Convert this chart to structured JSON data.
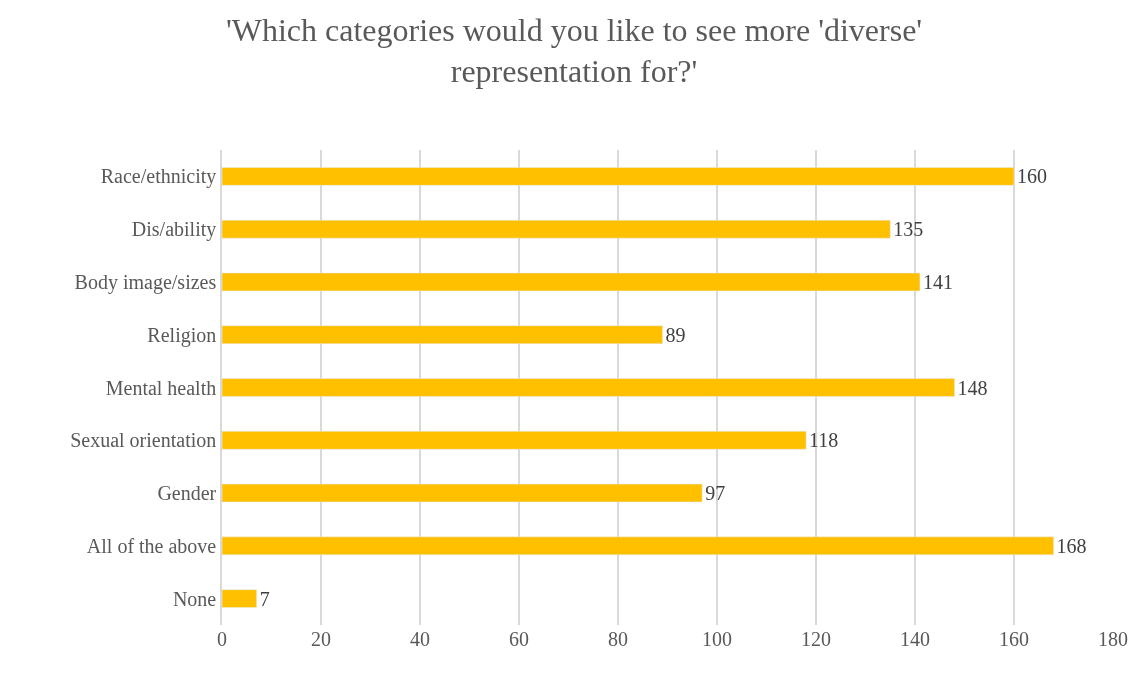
{
  "chart_data": {
    "type": "bar",
    "orientation": "horizontal",
    "title": "'Which categories would you like to see more 'diverse' representation for?'",
    "categories": [
      "Race/ethnicity",
      "Dis/ability",
      "Body image/sizes",
      "Religion",
      "Mental health",
      "Sexual orientation",
      "Gender",
      "All of the above",
      "None"
    ],
    "values": [
      160,
      135,
      141,
      89,
      148,
      118,
      97,
      168,
      7
    ],
    "color": "#ffc000",
    "xlim": [
      0,
      180
    ],
    "xticks": [
      0,
      20,
      40,
      60,
      80,
      100,
      120,
      140,
      160,
      180
    ],
    "grid": "x",
    "data_labels": true
  }
}
